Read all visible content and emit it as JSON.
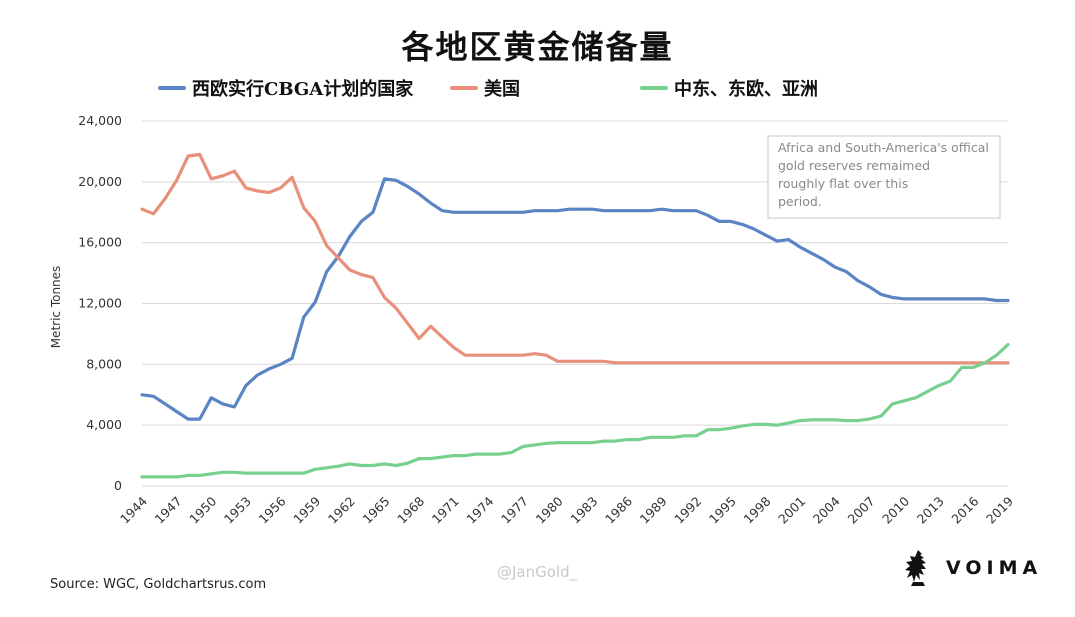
{
  "chart_data": {
    "type": "line",
    "title": "各地区黄金储备量",
    "ylabel": "Metric Tonnes",
    "xlabel": "",
    "ylim": [
      0,
      24000
    ],
    "xlim": [
      1944,
      2019
    ],
    "yticks": [
      0,
      4000,
      8000,
      12000,
      16000,
      20000,
      24000
    ],
    "ytick_labels": [
      "0",
      "4,000",
      "8,000",
      "12,000",
      "16,000",
      "20,000",
      "24,000"
    ],
    "xticks": [
      1944,
      1947,
      1950,
      1953,
      1956,
      1959,
      1962,
      1965,
      1968,
      1971,
      1974,
      1977,
      1980,
      1983,
      1986,
      1989,
      1992,
      1995,
      1998,
      2001,
      2004,
      2007,
      2010,
      2013,
      2016,
      2019
    ],
    "grid": true,
    "legend_position": "top",
    "annotation": "Africa and South-America's offical gold reserves remaimed roughly flat over this period.",
    "series": [
      {
        "name": "西欧实行CBGA计划的国家",
        "color": "#5b84c4",
        "points": [
          [
            1944,
            6000
          ],
          [
            1945,
            5900
          ],
          [
            1946,
            5400
          ],
          [
            1947,
            4900
          ],
          [
            1948,
            4400
          ],
          [
            1949,
            4400
          ],
          [
            1950,
            5800
          ],
          [
            1951,
            5400
          ],
          [
            1952,
            5200
          ],
          [
            1953,
            6600
          ],
          [
            1954,
            7300
          ],
          [
            1955,
            7700
          ],
          [
            1956,
            8000
          ],
          [
            1957,
            8400
          ],
          [
            1958,
            11100
          ],
          [
            1959,
            12100
          ],
          [
            1960,
            14100
          ],
          [
            1961,
            15100
          ],
          [
            1962,
            16400
          ],
          [
            1963,
            17400
          ],
          [
            1964,
            18000
          ],
          [
            1965,
            20200
          ],
          [
            1966,
            20100
          ],
          [
            1967,
            19700
          ],
          [
            1968,
            19200
          ],
          [
            1969,
            18600
          ],
          [
            1970,
            18100
          ],
          [
            1971,
            18000
          ],
          [
            1972,
            18000
          ],
          [
            1973,
            18000
          ],
          [
            1974,
            18000
          ],
          [
            1975,
            18000
          ],
          [
            1976,
            18000
          ],
          [
            1977,
            18000
          ],
          [
            1978,
            18100
          ],
          [
            1979,
            18100
          ],
          [
            1980,
            18100
          ],
          [
            1981,
            18200
          ],
          [
            1982,
            18200
          ],
          [
            1983,
            18200
          ],
          [
            1984,
            18100
          ],
          [
            1985,
            18100
          ],
          [
            1986,
            18100
          ],
          [
            1987,
            18100
          ],
          [
            1988,
            18100
          ],
          [
            1989,
            18200
          ],
          [
            1990,
            18100
          ],
          [
            1991,
            18100
          ],
          [
            1992,
            18100
          ],
          [
            1993,
            17800
          ],
          [
            1994,
            17400
          ],
          [
            1995,
            17400
          ],
          [
            1996,
            17200
          ],
          [
            1997,
            16900
          ],
          [
            1998,
            16500
          ],
          [
            1999,
            16100
          ],
          [
            2000,
            16200
          ],
          [
            2001,
            15700
          ],
          [
            2002,
            15300
          ],
          [
            2003,
            14900
          ],
          [
            2004,
            14400
          ],
          [
            2005,
            14100
          ],
          [
            2006,
            13500
          ],
          [
            2007,
            13100
          ],
          [
            2008,
            12600
          ],
          [
            2009,
            12400
          ],
          [
            2010,
            12300
          ],
          [
            2011,
            12300
          ],
          [
            2012,
            12300
          ],
          [
            2013,
            12300
          ],
          [
            2014,
            12300
          ],
          [
            2015,
            12300
          ],
          [
            2016,
            12300
          ],
          [
            2017,
            12300
          ],
          [
            2018,
            12200
          ],
          [
            2019,
            12200
          ]
        ]
      },
      {
        "name": "美国",
        "color": "#e8907a",
        "points": [
          [
            1944,
            18200
          ],
          [
            1945,
            17900
          ],
          [
            1946,
            18900
          ],
          [
            1947,
            20100
          ],
          [
            1948,
            21700
          ],
          [
            1949,
            21800
          ],
          [
            1950,
            20200
          ],
          [
            1951,
            20400
          ],
          [
            1952,
            20700
          ],
          [
            1953,
            19600
          ],
          [
            1954,
            19400
          ],
          [
            1955,
            19300
          ],
          [
            1956,
            19600
          ],
          [
            1957,
            20300
          ],
          [
            1958,
            18300
          ],
          [
            1959,
            17400
          ],
          [
            1960,
            15800
          ],
          [
            1961,
            15000
          ],
          [
            1962,
            14200
          ],
          [
            1963,
            13900
          ],
          [
            1964,
            13700
          ],
          [
            1965,
            12400
          ],
          [
            1966,
            11700
          ],
          [
            1967,
            10700
          ],
          [
            1968,
            9700
          ],
          [
            1969,
            10500
          ],
          [
            1970,
            9800
          ],
          [
            1971,
            9100
          ],
          [
            1972,
            8600
          ],
          [
            1973,
            8600
          ],
          [
            1974,
            8600
          ],
          [
            1975,
            8600
          ],
          [
            1976,
            8600
          ],
          [
            1977,
            8600
          ],
          [
            1978,
            8700
          ],
          [
            1979,
            8600
          ],
          [
            1980,
            8200
          ],
          [
            1981,
            8200
          ],
          [
            1982,
            8200
          ],
          [
            1983,
            8200
          ],
          [
            1984,
            8200
          ],
          [
            1985,
            8100
          ],
          [
            1986,
            8100
          ],
          [
            1987,
            8100
          ],
          [
            1988,
            8100
          ],
          [
            1989,
            8100
          ],
          [
            1990,
            8100
          ],
          [
            1991,
            8100
          ],
          [
            1992,
            8100
          ],
          [
            1993,
            8100
          ],
          [
            1994,
            8100
          ],
          [
            1995,
            8100
          ],
          [
            1996,
            8100
          ],
          [
            1997,
            8100
          ],
          [
            1998,
            8100
          ],
          [
            1999,
            8100
          ],
          [
            2000,
            8100
          ],
          [
            2001,
            8100
          ],
          [
            2002,
            8100
          ],
          [
            2003,
            8100
          ],
          [
            2004,
            8100
          ],
          [
            2005,
            8100
          ],
          [
            2006,
            8100
          ],
          [
            2007,
            8100
          ],
          [
            2008,
            8100
          ],
          [
            2009,
            8100
          ],
          [
            2010,
            8100
          ],
          [
            2011,
            8100
          ],
          [
            2012,
            8100
          ],
          [
            2013,
            8100
          ],
          [
            2014,
            8100
          ],
          [
            2015,
            8100
          ],
          [
            2016,
            8100
          ],
          [
            2017,
            8100
          ],
          [
            2018,
            8100
          ],
          [
            2019,
            8100
          ]
        ]
      },
      {
        "name": "中东、东欧、亚洲",
        "color": "#78d08f",
        "points": [
          [
            1944,
            600
          ],
          [
            1945,
            600
          ],
          [
            1946,
            600
          ],
          [
            1947,
            600
          ],
          [
            1948,
            700
          ],
          [
            1949,
            700
          ],
          [
            1950,
            800
          ],
          [
            1951,
            900
          ],
          [
            1952,
            900
          ],
          [
            1953,
            850
          ],
          [
            1954,
            850
          ],
          [
            1955,
            850
          ],
          [
            1956,
            850
          ],
          [
            1957,
            850
          ],
          [
            1958,
            850
          ],
          [
            1959,
            1100
          ],
          [
            1960,
            1200
          ],
          [
            1961,
            1300
          ],
          [
            1962,
            1450
          ],
          [
            1963,
            1350
          ],
          [
            1964,
            1350
          ],
          [
            1965,
            1450
          ],
          [
            1966,
            1350
          ],
          [
            1967,
            1500
          ],
          [
            1968,
            1800
          ],
          [
            1969,
            1800
          ],
          [
            1970,
            1900
          ],
          [
            1971,
            2000
          ],
          [
            1972,
            2000
          ],
          [
            1973,
            2100
          ],
          [
            1974,
            2100
          ],
          [
            1975,
            2100
          ],
          [
            1976,
            2200
          ],
          [
            1977,
            2600
          ],
          [
            1978,
            2700
          ],
          [
            1979,
            2800
          ],
          [
            1980,
            2850
          ],
          [
            1981,
            2850
          ],
          [
            1982,
            2850
          ],
          [
            1983,
            2850
          ],
          [
            1984,
            2950
          ],
          [
            1985,
            2950
          ],
          [
            1986,
            3050
          ],
          [
            1987,
            3050
          ],
          [
            1988,
            3200
          ],
          [
            1989,
            3200
          ],
          [
            1990,
            3200
          ],
          [
            1991,
            3300
          ],
          [
            1992,
            3300
          ],
          [
            1993,
            3700
          ],
          [
            1994,
            3700
          ],
          [
            1995,
            3800
          ],
          [
            1996,
            3950
          ],
          [
            1997,
            4050
          ],
          [
            1998,
            4050
          ],
          [
            1999,
            4000
          ],
          [
            2000,
            4150
          ],
          [
            2001,
            4300
          ],
          [
            2002,
            4350
          ],
          [
            2003,
            4350
          ],
          [
            2004,
            4350
          ],
          [
            2005,
            4300
          ],
          [
            2006,
            4300
          ],
          [
            2007,
            4400
          ],
          [
            2008,
            4600
          ],
          [
            2009,
            5400
          ],
          [
            2010,
            5600
          ],
          [
            2011,
            5800
          ],
          [
            2012,
            6200
          ],
          [
            2013,
            6600
          ],
          [
            2014,
            6900
          ],
          [
            2015,
            7800
          ],
          [
            2016,
            7800
          ],
          [
            2017,
            8100
          ],
          [
            2018,
            8600
          ],
          [
            2019,
            9300
          ]
        ]
      }
    ]
  },
  "footer": {
    "source": "Source: WGC, Goldchartsrus.com",
    "watermark": "@JanGold_",
    "brand": "VOIMA",
    "brand_icon": "lion-crest-icon"
  }
}
